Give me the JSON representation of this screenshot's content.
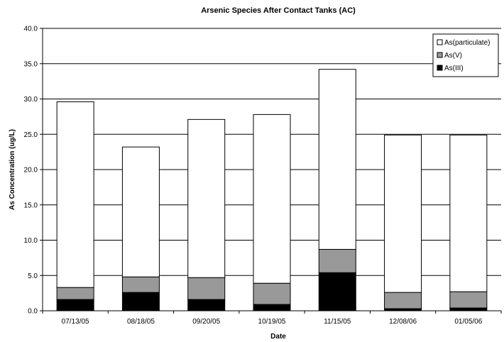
{
  "chart_data": {
    "type": "bar",
    "stacked": true,
    "title": "Arsenic Species After Contact Tanks (AC)",
    "xlabel": "Date",
    "ylabel": "As Concentration (ug/L)",
    "ylim": [
      0,
      40
    ],
    "ytick_step": 5,
    "ytick_labels": [
      "0.0",
      "5.0",
      "10.0",
      "15.0",
      "20.0",
      "25.0",
      "30.0",
      "35.0",
      "40.0"
    ],
    "grid": true,
    "legend_position": "top-right",
    "categories": [
      "07/13/05",
      "08/18/05",
      "09/20/05",
      "10/19/05",
      "11/15/05",
      "12/08/06",
      "01/05/06"
    ],
    "series": [
      {
        "name": "As(III)",
        "color": "#000000",
        "values": [
          1.6,
          2.6,
          1.6,
          0.9,
          5.4,
          0.3,
          0.4
        ]
      },
      {
        "name": "As(V)",
        "color": "#999999",
        "values": [
          1.7,
          2.2,
          3.1,
          3.0,
          3.3,
          2.3,
          2.3
        ]
      },
      {
        "name": "As(particulate)",
        "color": "#ffffff",
        "values": [
          26.3,
          18.4,
          22.4,
          23.9,
          25.5,
          22.3,
          22.2
        ]
      }
    ],
    "legend_order": [
      "As(particulate)",
      "As(V)",
      "As(III)"
    ]
  }
}
